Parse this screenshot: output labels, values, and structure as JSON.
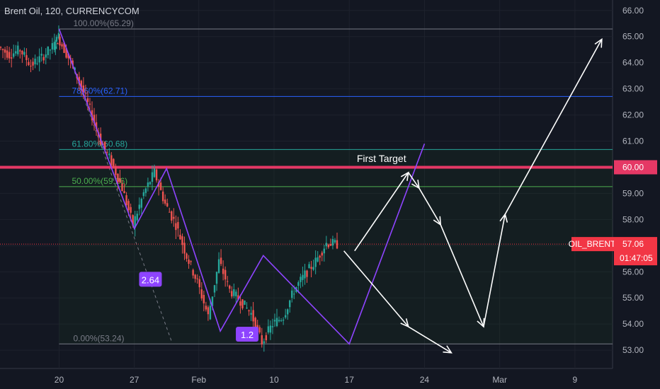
{
  "chart_data": {
    "type": "candlestick",
    "title": "Brent Oil, 120, CURRENCYCOM",
    "symbol": "OIL_BRENT",
    "last_price": "57.06",
    "countdown": "01:47:05",
    "ylim": [
      52.3,
      66.4
    ],
    "y_ticks": [
      "66.00",
      "65.00",
      "64.00",
      "63.00",
      "62.00",
      "61.00",
      "60.00",
      "59.00",
      "58.00",
      "57.00",
      "56.00",
      "55.00",
      "54.00",
      "53.00"
    ],
    "x_ticks": [
      "20",
      "27",
      "Feb",
      "10",
      "17",
      "24",
      "Mar",
      "9"
    ],
    "x_tick_positions": [
      0,
      7,
      13,
      20,
      27,
      34,
      41,
      48
    ],
    "xlim": [
      -5.5,
      51.5
    ],
    "price_path_x": [
      -5.5,
      -4.5,
      -3.5,
      -2.5,
      -1.5,
      -0.5,
      0,
      1,
      2,
      3,
      4,
      5,
      6,
      7,
      8,
      9,
      10,
      11,
      12,
      13,
      14,
      15,
      16,
      17,
      18,
      19,
      20,
      21,
      22,
      23,
      24,
      25,
      26
    ],
    "price_path_y": [
      64.6,
      64.3,
      64.5,
      63.9,
      64.2,
      64.6,
      65.0,
      64.2,
      63.3,
      62.2,
      61.0,
      60.2,
      59.2,
      57.8,
      59.0,
      59.8,
      58.6,
      57.8,
      56.6,
      55.6,
      54.3,
      56.4,
      55.3,
      54.9,
      54.4,
      53.3,
      54.0,
      54.3,
      55.3,
      55.9,
      56.4,
      57.1,
      57.06
    ],
    "fib_levels": [
      {
        "label": "100.00%(65.29)",
        "value": 65.29,
        "color": "#787b86"
      },
      {
        "label": "78.60%(62.71)",
        "value": 62.71,
        "color": "#2962ff"
      },
      {
        "label": "61.80%(60.68)",
        "value": 60.68,
        "color": "#26a69a"
      },
      {
        "label": "50.00%(59.26)",
        "value": 59.26,
        "color": "#4caf50"
      },
      {
        "label": "0.00%(53.24)",
        "value": 53.24,
        "color": "#787b86"
      }
    ],
    "horizontal_line": {
      "value": 60.0,
      "label": "60.00",
      "color": "#e53865"
    },
    "price_label_color": "#f23645",
    "pattern_points_x": [
      0,
      7,
      10,
      15,
      19,
      27,
      34
    ],
    "pattern_points_y": [
      65.29,
      57.65,
      59.95,
      53.73,
      56.62,
      53.24,
      60.9
    ],
    "pattern_labels": [
      {
        "text": "2.64",
        "x": 8.5,
        "y": 55.7
      },
      {
        "text": "1.2",
        "x": 17.5,
        "y": 53.6
      }
    ],
    "annotation": {
      "text": "First Target",
      "x": 30,
      "y": 60.2
    },
    "projection_x": [
      27.5,
      32.5,
      33.5,
      35.5,
      39.5,
      41.5,
      50.5
    ],
    "projection_y": [
      56.8,
      59.8,
      59.2,
      57.8,
      53.9,
      58.2,
      64.9
    ],
    "projection_x2": [
      26.5,
      32.5,
      36.5
    ],
    "projection_y2": [
      56.8,
      53.9,
      52.9
    ],
    "projection_color": "#ffffff",
    "pattern_color": "#8e44ff",
    "grid": true
  }
}
